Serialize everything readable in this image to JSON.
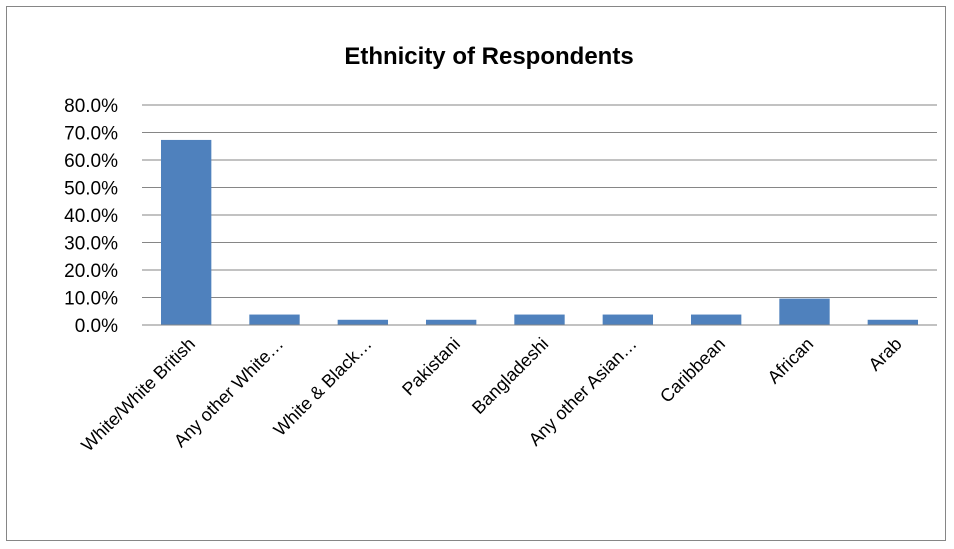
{
  "chart_data": {
    "type": "bar",
    "title": "Ethnicity of Respondents",
    "xlabel": "",
    "ylabel": "",
    "categories": [
      "White/White British",
      "Any other White…",
      "White & Black…",
      "Pakistani",
      "Bangladeshi",
      "Any other Asian…",
      "Caribbean",
      "African",
      "Arab"
    ],
    "values": [
      67.3,
      3.8,
      1.9,
      1.9,
      3.8,
      3.8,
      3.8,
      9.6,
      1.9
    ],
    "ylim": [
      0,
      80
    ],
    "yticks": [
      "0.0%",
      "10.0%",
      "20.0%",
      "30.0%",
      "40.0%",
      "50.0%",
      "60.0%",
      "70.0%",
      "80.0%"
    ],
    "grid": true,
    "legend": "none",
    "colors": {
      "bar": "#4F81BD",
      "grid": "#868686",
      "border": "#868686"
    }
  }
}
